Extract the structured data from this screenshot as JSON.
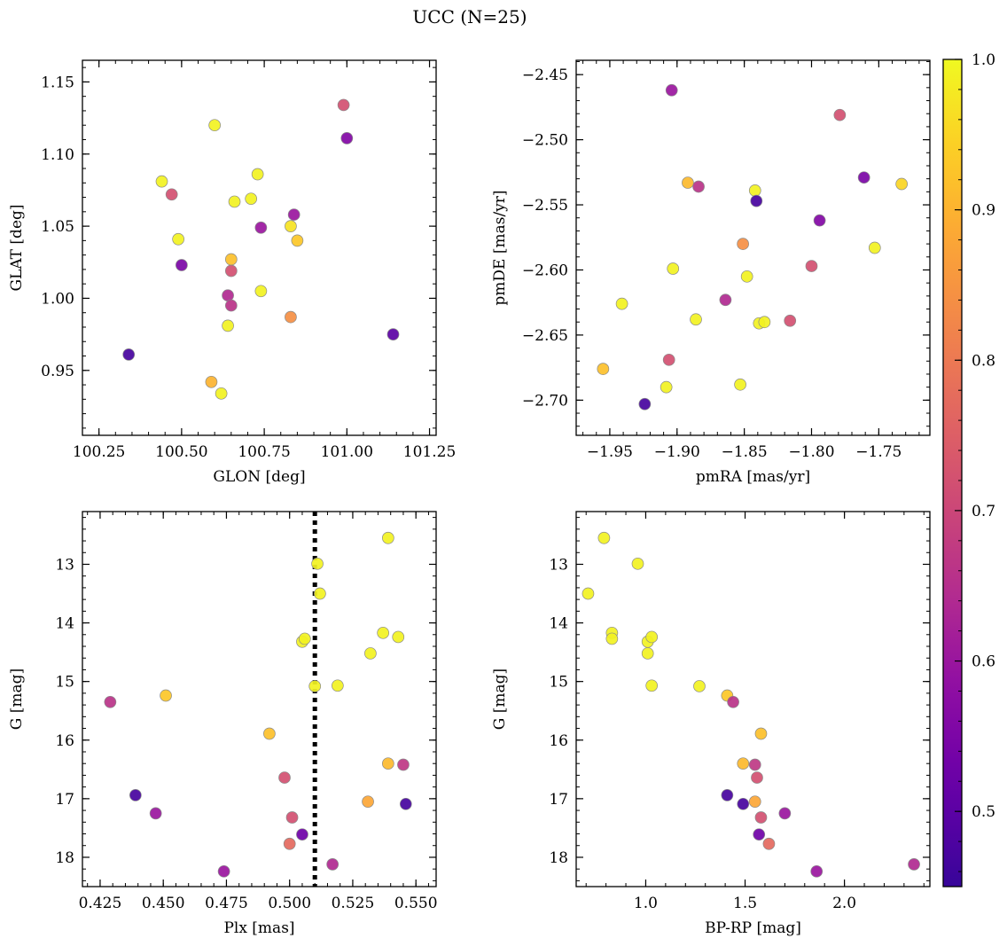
{
  "figure": {
    "title": "UCC (N=25)"
  },
  "colorbar": {
    "colormap": "plasma",
    "range": [
      0.45,
      1.0
    ],
    "ticks": [
      0.5,
      0.6,
      0.7,
      0.8,
      0.9,
      1.0
    ],
    "tick_labels": [
      "0.5",
      "0.6",
      "0.7",
      "0.8",
      "0.9",
      "1.0"
    ]
  },
  "chart_data": [
    {
      "type": "scatter",
      "id": "glon-glat",
      "xlabel": "GLON [deg]",
      "ylabel": "GLAT [deg]",
      "xlim": [
        100.2,
        101.27
      ],
      "ylim": [
        0.905,
        1.165
      ],
      "y_inverted": false,
      "xticks": [
        100.25,
        100.5,
        100.75,
        101.0,
        101.25
      ],
      "xtick_labels": [
        "100.25",
        "100.50",
        "100.75",
        "101.00",
        "101.25"
      ],
      "yticks": [
        0.95,
        1.0,
        1.05,
        1.1,
        1.15
      ],
      "ytick_labels": [
        "0.95",
        "1.00",
        "1.05",
        "1.10",
        "1.15"
      ],
      "points": [
        {
          "x": 100.34,
          "y": 0.961,
          "c": 0.47
        },
        {
          "x": 100.44,
          "y": 1.081,
          "c": 0.99
        },
        {
          "x": 100.47,
          "y": 1.072,
          "c": 0.72
        },
        {
          "x": 100.49,
          "y": 1.041,
          "c": 0.99
        },
        {
          "x": 100.5,
          "y": 1.023,
          "c": 0.55
        },
        {
          "x": 100.59,
          "y": 0.942,
          "c": 0.9
        },
        {
          "x": 100.6,
          "y": 1.12,
          "c": 0.99
        },
        {
          "x": 100.62,
          "y": 0.934,
          "c": 0.99
        },
        {
          "x": 100.64,
          "y": 1.002,
          "c": 0.64
        },
        {
          "x": 100.64,
          "y": 0.981,
          "c": 0.99
        },
        {
          "x": 100.65,
          "y": 1.027,
          "c": 0.92
        },
        {
          "x": 100.65,
          "y": 0.995,
          "c": 0.66
        },
        {
          "x": 100.65,
          "y": 1.019,
          "c": 0.72
        },
        {
          "x": 100.66,
          "y": 1.067,
          "c": 0.99
        },
        {
          "x": 100.71,
          "y": 1.069,
          "c": 0.99
        },
        {
          "x": 100.73,
          "y": 1.086,
          "c": 0.99
        },
        {
          "x": 100.74,
          "y": 1.049,
          "c": 0.6
        },
        {
          "x": 100.74,
          "y": 1.005,
          "c": 0.99
        },
        {
          "x": 100.83,
          "y": 0.987,
          "c": 0.84
        },
        {
          "x": 100.83,
          "y": 1.05,
          "c": 0.97
        },
        {
          "x": 100.84,
          "y": 1.058,
          "c": 0.6
        },
        {
          "x": 100.85,
          "y": 1.04,
          "c": 0.93
        },
        {
          "x": 100.99,
          "y": 1.134,
          "c": 0.72
        },
        {
          "x": 101.0,
          "y": 1.111,
          "c": 0.56
        },
        {
          "x": 101.14,
          "y": 0.975,
          "c": 0.5
        }
      ]
    },
    {
      "type": "scatter",
      "id": "pmra-pmde",
      "xlabel": "pmRA [mas/yr]",
      "ylabel": "pmDE [mas/yr]",
      "xlim": [
        -1.975,
        -1.712
      ],
      "ylim": [
        -2.727,
        -2.439
      ],
      "y_inverted": false,
      "xticks": [
        -1.95,
        -1.9,
        -1.85,
        -1.8,
        -1.75
      ],
      "xtick_labels": [
        "−1.95",
        "−1.90",
        "−1.85",
        "−1.80",
        "−1.75"
      ],
      "yticks": [
        -2.7,
        -2.65,
        -2.6,
        -2.55,
        -2.5,
        -2.45
      ],
      "ytick_labels": [
        "−2.70",
        "−2.65",
        "−2.60",
        "−2.55",
        "−2.50",
        "−2.45"
      ],
      "points": [
        {
          "x": -1.955,
          "y": -2.676,
          "c": 0.92
        },
        {
          "x": -1.941,
          "y": -2.626,
          "c": 0.99
        },
        {
          "x": -1.924,
          "y": -2.703,
          "c": 0.47
        },
        {
          "x": -1.908,
          "y": -2.69,
          "c": 0.99
        },
        {
          "x": -1.906,
          "y": -2.669,
          "c": 0.72
        },
        {
          "x": -1.904,
          "y": -2.462,
          "c": 0.6
        },
        {
          "x": -1.903,
          "y": -2.599,
          "c": 0.99
        },
        {
          "x": -1.892,
          "y": -2.533,
          "c": 0.91
        },
        {
          "x": -1.886,
          "y": -2.638,
          "c": 0.99
        },
        {
          "x": -1.884,
          "y": -2.536,
          "c": 0.66
        },
        {
          "x": -1.864,
          "y": -2.623,
          "c": 0.64
        },
        {
          "x": -1.853,
          "y": -2.688,
          "c": 0.99
        },
        {
          "x": -1.851,
          "y": -2.58,
          "c": 0.84
        },
        {
          "x": -1.848,
          "y": -2.605,
          "c": 0.99
        },
        {
          "x": -1.842,
          "y": -2.539,
          "c": 0.99
        },
        {
          "x": -1.841,
          "y": -2.547,
          "c": 0.47
        },
        {
          "x": -1.839,
          "y": -2.641,
          "c": 0.99
        },
        {
          "x": -1.835,
          "y": -2.64,
          "c": 0.99
        },
        {
          "x": -1.816,
          "y": -2.639,
          "c": 0.72
        },
        {
          "x": -1.8,
          "y": -2.597,
          "c": 0.72
        },
        {
          "x": -1.794,
          "y": -2.562,
          "c": 0.56
        },
        {
          "x": -1.779,
          "y": -2.481,
          "c": 0.72
        },
        {
          "x": -1.761,
          "y": -2.529,
          "c": 0.55
        },
        {
          "x": -1.753,
          "y": -2.583,
          "c": 0.99
        },
        {
          "x": -1.733,
          "y": -2.534,
          "c": 0.95
        }
      ]
    },
    {
      "type": "scatter",
      "id": "plx-g",
      "xlabel": "Plx [mas]",
      "ylabel": "G [mag]",
      "xlim": [
        0.418,
        0.558
      ],
      "ylim": [
        12.1,
        18.5
      ],
      "y_inverted": true,
      "vline": {
        "x": 0.51,
        "style": "dotted"
      },
      "xticks": [
        0.425,
        0.45,
        0.475,
        0.5,
        0.525,
        0.55
      ],
      "xtick_labels": [
        "0.425",
        "0.450",
        "0.475",
        "0.500",
        "0.525",
        "0.550"
      ],
      "yticks": [
        13,
        14,
        15,
        16,
        17,
        18
      ],
      "ytick_labels": [
        "13",
        "14",
        "15",
        "16",
        "17",
        "18"
      ],
      "points": [
        {
          "x": 0.429,
          "y": 15.35,
          "c": 0.66
        },
        {
          "x": 0.439,
          "y": 16.94,
          "c": 0.47
        },
        {
          "x": 0.447,
          "y": 17.25,
          "c": 0.6
        },
        {
          "x": 0.451,
          "y": 15.24,
          "c": 0.93
        },
        {
          "x": 0.474,
          "y": 18.24,
          "c": 0.6
        },
        {
          "x": 0.492,
          "y": 15.89,
          "c": 0.92
        },
        {
          "x": 0.498,
          "y": 16.64,
          "c": 0.72
        },
        {
          "x": 0.5,
          "y": 17.77,
          "c": 0.77
        },
        {
          "x": 0.501,
          "y": 17.32,
          "c": 0.72
        },
        {
          "x": 0.505,
          "y": 17.61,
          "c": 0.53
        },
        {
          "x": 0.505,
          "y": 14.32,
          "c": 0.99
        },
        {
          "x": 0.506,
          "y": 14.27,
          "c": 0.99
        },
        {
          "x": 0.51,
          "y": 15.08,
          "c": 0.99
        },
        {
          "x": 0.511,
          "y": 12.99,
          "c": 0.99
        },
        {
          "x": 0.512,
          "y": 13.5,
          "c": 0.99
        },
        {
          "x": 0.517,
          "y": 18.12,
          "c": 0.64
        },
        {
          "x": 0.519,
          "y": 15.07,
          "c": 0.99
        },
        {
          "x": 0.531,
          "y": 17.05,
          "c": 0.88
        },
        {
          "x": 0.532,
          "y": 14.52,
          "c": 0.99
        },
        {
          "x": 0.537,
          "y": 14.17,
          "c": 0.99
        },
        {
          "x": 0.539,
          "y": 16.4,
          "c": 0.91
        },
        {
          "x": 0.539,
          "y": 12.55,
          "c": 0.99
        },
        {
          "x": 0.543,
          "y": 14.24,
          "c": 0.99
        },
        {
          "x": 0.545,
          "y": 16.42,
          "c": 0.67
        },
        {
          "x": 0.546,
          "y": 17.09,
          "c": 0.47
        }
      ]
    },
    {
      "type": "scatter",
      "id": "bprp-g",
      "xlabel": "BP-RP [mag]",
      "ylabel": "G [mag]",
      "xlim": [
        0.65,
        2.43
      ],
      "ylim": [
        12.1,
        18.5
      ],
      "y_inverted": true,
      "xticks": [
        1.0,
        1.5,
        2.0
      ],
      "xtick_labels": [
        "1.0",
        "1.5",
        "2.0"
      ],
      "yticks": [
        13,
        14,
        15,
        16,
        17,
        18
      ],
      "ytick_labels": [
        "13",
        "14",
        "15",
        "16",
        "17",
        "18"
      ],
      "points": [
        {
          "x": 0.71,
          "y": 13.5,
          "c": 0.99
        },
        {
          "x": 0.79,
          "y": 12.55,
          "c": 0.99
        },
        {
          "x": 0.83,
          "y": 14.17,
          "c": 0.99
        },
        {
          "x": 0.83,
          "y": 14.27,
          "c": 0.99
        },
        {
          "x": 0.96,
          "y": 12.99,
          "c": 0.99
        },
        {
          "x": 1.01,
          "y": 14.52,
          "c": 0.99
        },
        {
          "x": 1.01,
          "y": 14.32,
          "c": 0.99
        },
        {
          "x": 1.03,
          "y": 14.24,
          "c": 0.99
        },
        {
          "x": 1.03,
          "y": 15.07,
          "c": 0.99
        },
        {
          "x": 1.27,
          "y": 15.08,
          "c": 0.99
        },
        {
          "x": 1.41,
          "y": 16.94,
          "c": 0.47
        },
        {
          "x": 1.41,
          "y": 15.24,
          "c": 0.93
        },
        {
          "x": 1.44,
          "y": 15.35,
          "c": 0.66
        },
        {
          "x": 1.49,
          "y": 17.09,
          "c": 0.47
        },
        {
          "x": 1.49,
          "y": 16.4,
          "c": 0.91
        },
        {
          "x": 1.55,
          "y": 16.42,
          "c": 0.67
        },
        {
          "x": 1.55,
          "y": 17.05,
          "c": 0.88
        },
        {
          "x": 1.56,
          "y": 16.64,
          "c": 0.72
        },
        {
          "x": 1.57,
          "y": 17.61,
          "c": 0.53
        },
        {
          "x": 1.58,
          "y": 17.32,
          "c": 0.72
        },
        {
          "x": 1.58,
          "y": 15.89,
          "c": 0.92
        },
        {
          "x": 1.62,
          "y": 17.77,
          "c": 0.77
        },
        {
          "x": 1.7,
          "y": 17.25,
          "c": 0.6
        },
        {
          "x": 1.86,
          "y": 18.24,
          "c": 0.6
        },
        {
          "x": 2.35,
          "y": 18.12,
          "c": 0.64
        }
      ]
    }
  ]
}
